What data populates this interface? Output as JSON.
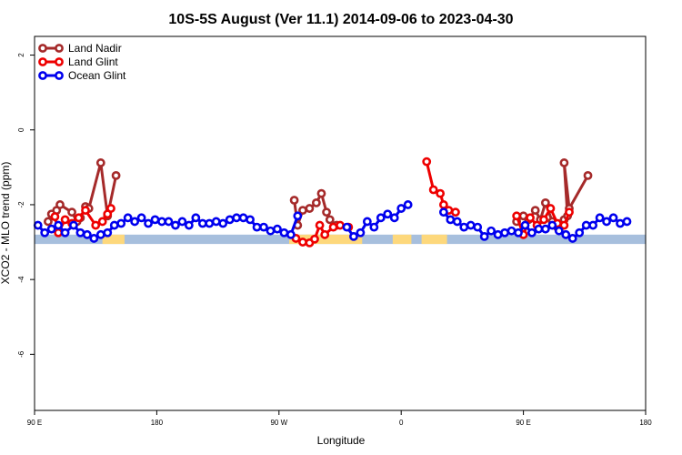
{
  "chart_data": {
    "type": "line",
    "title": "10S-5S August (Ver 11.1)   2014-09-06 to 2023-04-30",
    "xlabel": "Longitude",
    "ylabel": "XCO2 - MLO trend (ppm)",
    "xlim": [
      90,
      450
    ],
    "ylim": [
      -7.5,
      2.5
    ],
    "x_ticks": [
      {
        "value": 90,
        "label": "90 E"
      },
      {
        "value": 162,
        "label": "180"
      },
      {
        "value": 234,
        "label": "90 W"
      },
      {
        "value": 306,
        "label": "0"
      },
      {
        "value": 378,
        "label": "90 E"
      },
      {
        "value": 450,
        "label": "180"
      }
    ],
    "y_ticks": [
      {
        "value": 2,
        "label": "2"
      },
      {
        "value": 0,
        "label": "0"
      },
      {
        "value": -2,
        "label": "-2"
      },
      {
        "value": -4,
        "label": "-4"
      },
      {
        "value": -6,
        "label": "-6"
      }
    ],
    "land_band": {
      "y_range": [
        -3.05,
        -2.8
      ],
      "ocean_color": "#a7bfdd",
      "land_color": "#fdd87c",
      "land_segments": [
        [
          130,
          143
        ],
        [
          240,
          253
        ],
        [
          250,
          283
        ],
        [
          301,
          312
        ],
        [
          333,
          318
        ]
      ]
    },
    "legend": {
      "position": "top-left"
    },
    "series": [
      {
        "name": "Land Nadir",
        "color": "#a52a2a",
        "segments": [
          [
            [
              98,
              -2.45
            ],
            [
              100,
              -2.25
            ],
            [
              103,
              -2.15
            ],
            [
              105,
              -2.0
            ],
            [
              112,
              -2.2
            ],
            [
              115,
              -2.45
            ],
            [
              117,
              -2.35
            ],
            [
              120,
              -2.05
            ],
            [
              122,
              -2.1
            ],
            [
              129,
              -0.88
            ],
            [
              133,
              -2.3
            ],
            [
              138,
              -1.22
            ]
          ],
          [
            [
              243,
              -1.88
            ],
            [
              245,
              -2.55
            ],
            [
              248,
              -2.15
            ],
            [
              252,
              -2.1
            ],
            [
              256,
              -1.95
            ],
            [
              259,
              -1.7
            ],
            [
              262,
              -2.2
            ],
            [
              264,
              -2.4
            ],
            [
              268,
              -2.55
            ]
          ],
          [
            [
              374,
              -2.45
            ],
            [
              378,
              -2.3
            ],
            [
              381,
              -2.4
            ],
            [
              385,
              -2.15
            ],
            [
              388,
              -2.4
            ],
            [
              391,
              -1.95
            ],
            [
              395,
              -2.45
            ],
            [
              398,
              -2.6
            ],
            [
              402,
              -2.4
            ],
            [
              404,
              -2.3
            ],
            [
              402,
              -0.88
            ],
            [
              405,
              -2.1
            ],
            [
              416,
              -1.22
            ]
          ]
        ]
      },
      {
        "name": "Land Glint",
        "color": "#ee0000",
        "segments": [
          [
            [
              102,
              -2.32
            ],
            [
              104,
              -2.75
            ],
            [
              108,
              -2.4
            ],
            [
              112,
              -2.5
            ],
            [
              116,
              -2.35
            ],
            [
              120,
              -2.15
            ],
            [
              126,
              -2.55
            ],
            [
              130,
              -2.45
            ],
            [
              133,
              -2.25
            ],
            [
              135,
              -2.1
            ]
          ],
          [
            [
              244,
              -2.9
            ],
            [
              248,
              -3.0
            ],
            [
              252,
              -3.02
            ],
            [
              255,
              -2.92
            ],
            [
              258,
              -2.55
            ],
            [
              261,
              -2.8
            ],
            [
              266,
              -2.6
            ],
            [
              270,
              -2.55
            ],
            [
              275,
              -2.6
            ]
          ],
          [
            [
              321,
              -0.85
            ],
            [
              325,
              -1.6
            ],
            [
              329,
              -1.7
            ],
            [
              331,
              -2.0
            ],
            [
              334,
              -2.15
            ],
            [
              338,
              -2.2
            ]
          ],
          [
            [
              374,
              -2.3
            ],
            [
              378,
              -2.8
            ],
            [
              382,
              -2.35
            ],
            [
              386,
              -2.55
            ],
            [
              390,
              -2.4
            ],
            [
              394,
              -2.1
            ],
            [
              398,
              -2.5
            ],
            [
              402,
              -2.55
            ],
            [
              405,
              -2.2
            ]
          ]
        ]
      },
      {
        "name": "Ocean Glint",
        "color": "#0000ee",
        "segments": [
          [
            [
              92,
              -2.55
            ],
            [
              96,
              -2.75
            ],
            [
              100,
              -2.65
            ],
            [
              104,
              -2.55
            ],
            [
              108,
              -2.75
            ],
            [
              113,
              -2.55
            ],
            [
              117,
              -2.75
            ],
            [
              121,
              -2.8
            ],
            [
              125,
              -2.9
            ],
            [
              129,
              -2.8
            ],
            [
              133,
              -2.75
            ],
            [
              137,
              -2.55
            ],
            [
              141,
              -2.5
            ],
            [
              145,
              -2.35
            ],
            [
              149,
              -2.45
            ],
            [
              153,
              -2.35
            ],
            [
              157,
              -2.5
            ],
            [
              161,
              -2.4
            ],
            [
              165,
              -2.45
            ],
            [
              169,
              -2.45
            ],
            [
              173,
              -2.55
            ],
            [
              177,
              -2.45
            ],
            [
              181,
              -2.55
            ],
            [
              185,
              -2.35
            ],
            [
              189,
              -2.5
            ],
            [
              193,
              -2.5
            ],
            [
              197,
              -2.45
            ],
            [
              201,
              -2.5
            ],
            [
              205,
              -2.4
            ],
            [
              209,
              -2.35
            ],
            [
              213,
              -2.35
            ],
            [
              217,
              -2.4
            ],
            [
              221,
              -2.6
            ],
            [
              225,
              -2.6
            ],
            [
              229,
              -2.7
            ],
            [
              233,
              -2.65
            ],
            [
              237,
              -2.75
            ],
            [
              241,
              -2.8
            ],
            [
              245,
              -2.3
            ]
          ],
          [
            [
              274,
              -2.6
            ],
            [
              278,
              -2.85
            ],
            [
              282,
              -2.75
            ],
            [
              286,
              -2.45
            ],
            [
              290,
              -2.6
            ],
            [
              294,
              -2.35
            ],
            [
              298,
              -2.25
            ],
            [
              302,
              -2.35
            ],
            [
              306,
              -2.1
            ],
            [
              310,
              -2.0
            ]
          ],
          [
            [
              331,
              -2.2
            ],
            [
              335,
              -2.4
            ],
            [
              339,
              -2.45
            ],
            [
              343,
              -2.6
            ],
            [
              347,
              -2.55
            ],
            [
              351,
              -2.6
            ],
            [
              355,
              -2.85
            ],
            [
              359,
              -2.7
            ],
            [
              363,
              -2.8
            ],
            [
              367,
              -2.75
            ],
            [
              371,
              -2.7
            ],
            [
              375,
              -2.75
            ],
            [
              379,
              -2.55
            ],
            [
              383,
              -2.75
            ],
            [
              387,
              -2.65
            ],
            [
              391,
              -2.65
            ],
            [
              395,
              -2.55
            ],
            [
              399,
              -2.7
            ],
            [
              403,
              -2.8
            ],
            [
              407,
              -2.9
            ],
            [
              411,
              -2.75
            ],
            [
              415,
              -2.55
            ],
            [
              419,
              -2.55
            ],
            [
              423,
              -2.35
            ],
            [
              427,
              -2.45
            ],
            [
              431,
              -2.35
            ],
            [
              435,
              -2.5
            ],
            [
              439,
              -2.45
            ]
          ]
        ]
      }
    ]
  }
}
